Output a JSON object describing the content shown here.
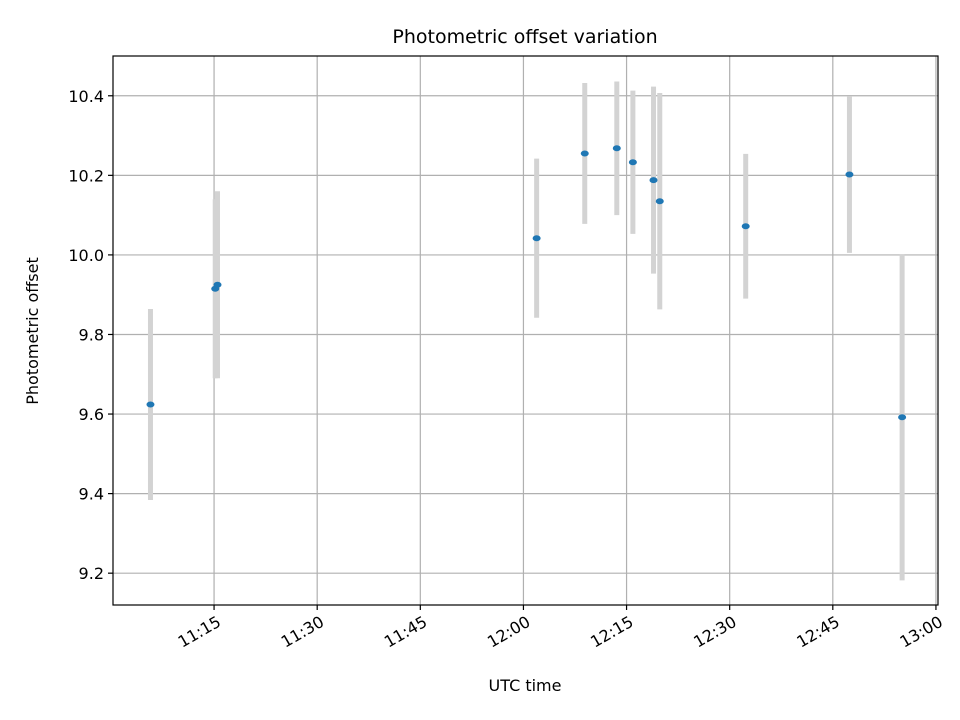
{
  "chart_data": {
    "type": "scatter",
    "title": "Photometric offset variation",
    "xlabel": "UTC time",
    "ylabel": "Photometric offset",
    "x_ticks": [
      "11:15",
      "11:30",
      "11:45",
      "12:00",
      "12:15",
      "12:30",
      "12:45",
      "13:00"
    ],
    "x_tick_minutes": [
      675,
      690,
      705,
      720,
      735,
      750,
      765,
      780
    ],
    "xlim_minutes": [
      660.3,
      780.3
    ],
    "y_ticks": [
      "9.2",
      "9.4",
      "9.6",
      "9.8",
      "10.0",
      "10.2",
      "10.4"
    ],
    "y_tick_values": [
      9.2,
      9.4,
      9.6,
      9.8,
      10.0,
      10.2,
      10.4
    ],
    "ylim": [
      9.12,
      10.5
    ],
    "grid": true,
    "marker_color": "#1f77b4",
    "errorbar_color": "#d3d3d3",
    "points": [
      {
        "time": "11:05:45",
        "minutes": 665.75,
        "y": 9.624,
        "err": 0.24
      },
      {
        "time": "11:15:10",
        "minutes": 675.17,
        "y": 9.915,
        "err": 0.225
      },
      {
        "time": "11:15:30",
        "minutes": 675.5,
        "y": 9.925,
        "err": 0.235
      },
      {
        "time": "12:01:55",
        "minutes": 721.92,
        "y": 10.042,
        "err": 0.2
      },
      {
        "time": "12:08:55",
        "minutes": 728.92,
        "y": 10.255,
        "err": 0.177
      },
      {
        "time": "12:13:35",
        "minutes": 733.58,
        "y": 10.268,
        "err": 0.168
      },
      {
        "time": "12:15:55",
        "minutes": 735.92,
        "y": 10.233,
        "err": 0.18
      },
      {
        "time": "12:18:55",
        "minutes": 738.92,
        "y": 10.188,
        "err": 0.235
      },
      {
        "time": "12:19:50",
        "minutes": 739.83,
        "y": 10.135,
        "err": 0.272
      },
      {
        "time": "12:32:20",
        "minutes": 752.33,
        "y": 10.072,
        "err": 0.182
      },
      {
        "time": "12:47:25",
        "minutes": 767.42,
        "y": 10.202,
        "err": 0.197
      },
      {
        "time": "12:55:05",
        "minutes": 775.08,
        "y": 9.592,
        "err": 0.41
      }
    ]
  }
}
